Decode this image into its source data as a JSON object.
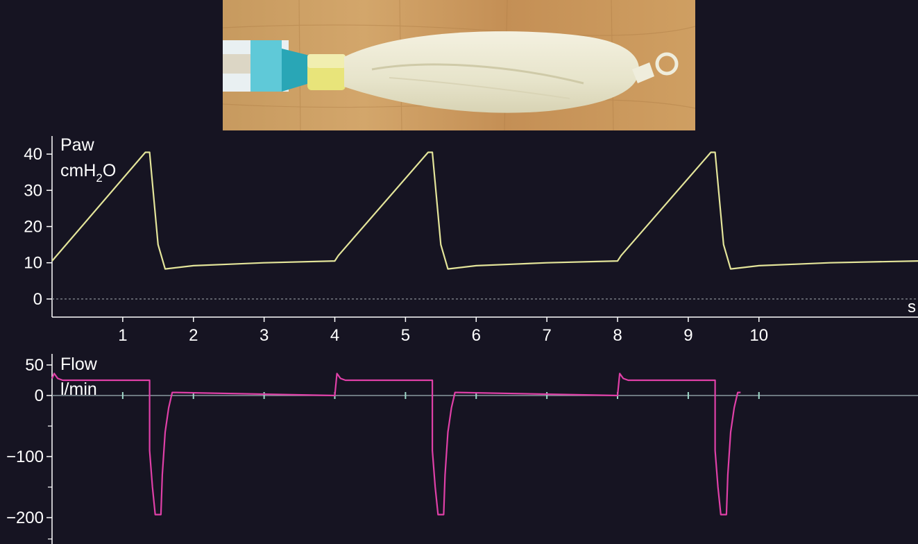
{
  "photo": {
    "icon": "test-lung-bag-photo"
  },
  "chart_data": [
    {
      "type": "line",
      "ylabel": "Paw",
      "yunit": {
        "base": "cmH",
        "sub": "2",
        "tail": "O"
      },
      "xlabel": "s",
      "ylim": [
        -5,
        45
      ],
      "xlim": [
        0,
        12.25
      ],
      "yticks": [
        0,
        10,
        20,
        30,
        40
      ],
      "xticks": [
        1,
        2,
        3,
        4,
        5,
        6,
        7,
        8,
        9,
        10
      ],
      "color": "#e4e59a",
      "series": [
        {
          "name": "Paw",
          "x": [
            0,
            1.32,
            1.38,
            1.5,
            1.6,
            2.0,
            2.5,
            3.0,
            4.0,
            4.05,
            5.32,
            5.38,
            5.5,
            5.6,
            6.0,
            6.5,
            7.0,
            8.0,
            8.05,
            9.32,
            9.38,
            9.5,
            9.6,
            10.0,
            10.5,
            11.0,
            12.25
          ],
          "y": [
            10.5,
            40.5,
            40.5,
            15,
            8.3,
            9.2,
            9.6,
            10.0,
            10.5,
            12,
            40.5,
            40.5,
            15,
            8.3,
            9.2,
            9.6,
            10.0,
            10.5,
            12,
            40.5,
            40.5,
            15,
            8.3,
            9.2,
            9.6,
            10.0,
            10.5
          ]
        }
      ]
    },
    {
      "type": "line",
      "ylabel": "Flow",
      "yunit": "l/min",
      "ylim": [
        -240,
        60
      ],
      "xlim": [
        0,
        12.25
      ],
      "yticks": [
        50,
        0,
        -100,
        -200
      ],
      "ytick_labels": [
        "50",
        "0",
        "−100",
        "−200"
      ],
      "color": "#e040a8",
      "series": [
        {
          "name": "Flow",
          "x": [
            0,
            0.03,
            0.08,
            0.15,
            1.38,
            1.38,
            1.42,
            1.46,
            1.5,
            1.54,
            1.56,
            1.6,
            1.65,
            1.7,
            1.74,
            4.0,
            4.03,
            4.08,
            4.15,
            5.38,
            5.38,
            5.42,
            5.46,
            5.5,
            5.54,
            5.56,
            5.6,
            5.65,
            5.7,
            5.74,
            8.0,
            8.03,
            8.08,
            8.15,
            9.38,
            9.38,
            9.42,
            9.46,
            9.5,
            9.54,
            9.56,
            9.6,
            9.65,
            9.7,
            9.74
          ],
          "y": [
            28,
            36,
            28,
            25,
            25,
            -90,
            -150,
            -195,
            -195,
            -195,
            -130,
            -60,
            -20,
            5,
            5,
            0,
            36,
            28,
            25,
            25,
            -90,
            -150,
            -195,
            -195,
            -195,
            -130,
            -60,
            -20,
            5,
            5,
            0,
            36,
            28,
            25,
            25,
            -90,
            -150,
            -195,
            -195,
            -195,
            -130,
            -60,
            -20,
            5,
            5
          ]
        }
      ]
    }
  ]
}
